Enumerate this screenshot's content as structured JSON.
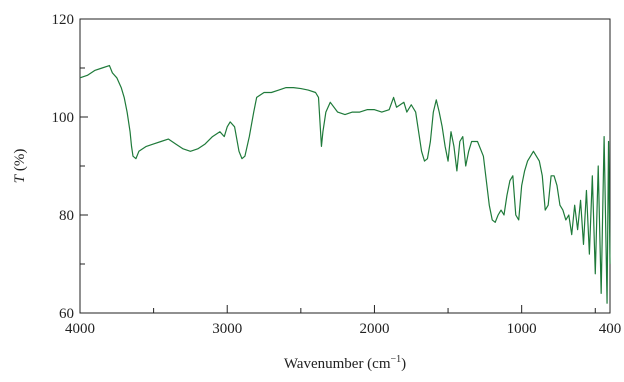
{
  "chart_data": {
    "type": "line",
    "xlabel": {
      "main": "Wavenumber (cm",
      "sup": "−1",
      "end": ")"
    },
    "ylabel": {
      "var": "T",
      "unit": "(%)"
    },
    "xlim": [
      4000,
      400
    ],
    "ylim": [
      60,
      120
    ],
    "xticks": [
      4000,
      3000,
      2000,
      1000,
      400
    ],
    "xminorticks": [
      3500,
      2500,
      1500,
      500
    ],
    "yticks": [
      60,
      80,
      100,
      120
    ],
    "yminorticks": [
      70,
      90,
      110
    ],
    "series": [
      {
        "color": "#1f7a3a",
        "x": [
          4000,
          3950,
          3900,
          3850,
          3800,
          3780,
          3750,
          3720,
          3700,
          3680,
          3660,
          3650,
          3640,
          3620,
          3600,
          3550,
          3500,
          3450,
          3400,
          3350,
          3300,
          3250,
          3200,
          3150,
          3100,
          3050,
          3020,
          3000,
          2980,
          2950,
          2920,
          2900,
          2880,
          2850,
          2820,
          2800,
          2750,
          2700,
          2650,
          2600,
          2550,
          2500,
          2450,
          2400,
          2380,
          2370,
          2360,
          2350,
          2330,
          2300,
          2250,
          2200,
          2150,
          2100,
          2050,
          2000,
          1950,
          1900,
          1870,
          1850,
          1800,
          1780,
          1750,
          1720,
          1700,
          1680,
          1660,
          1640,
          1620,
          1600,
          1580,
          1560,
          1540,
          1520,
          1500,
          1480,
          1460,
          1440,
          1420,
          1400,
          1380,
          1360,
          1340,
          1300,
          1260,
          1240,
          1220,
          1200,
          1180,
          1160,
          1140,
          1120,
          1100,
          1080,
          1060,
          1040,
          1020,
          1000,
          980,
          960,
          940,
          920,
          900,
          880,
          860,
          840,
          820,
          800,
          780,
          760,
          740,
          720,
          700,
          680,
          660,
          640,
          620,
          600,
          580,
          560,
          540,
          520,
          500,
          480,
          460,
          440,
          420,
          410,
          400
        ],
        "values": [
          108,
          108.5,
          109.5,
          110,
          110.5,
          109,
          108,
          106,
          104,
          101,
          97,
          94,
          92,
          91.5,
          93,
          94,
          94.5,
          95,
          95.5,
          94.5,
          93.5,
          93,
          93.5,
          94.5,
          96,
          97,
          96,
          98,
          99,
          98,
          93,
          91.5,
          92,
          96,
          101,
          104,
          105,
          105,
          105.5,
          106,
          106,
          105.8,
          105.5,
          105,
          104,
          99,
          94,
          97,
          101,
          103,
          101,
          100.5,
          101,
          101,
          101.5,
          101.5,
          101,
          101.5,
          104,
          102,
          103,
          101,
          102.5,
          101,
          97,
          93,
          91,
          91.5,
          95,
          101,
          103.5,
          101,
          98,
          94,
          91,
          97,
          94,
          89,
          95,
          96,
          90,
          93,
          95,
          95,
          92,
          87,
          82,
          79,
          78.5,
          80,
          81,
          80,
          84,
          87,
          88,
          80,
          79,
          86,
          89,
          91,
          92,
          93,
          92,
          91,
          88,
          81,
          82,
          88,
          88,
          86,
          82,
          81,
          79,
          80,
          76,
          82,
          77,
          83,
          74,
          85,
          72,
          88,
          68,
          90,
          64,
          96,
          62,
          95,
          70
        ]
      }
    ]
  }
}
